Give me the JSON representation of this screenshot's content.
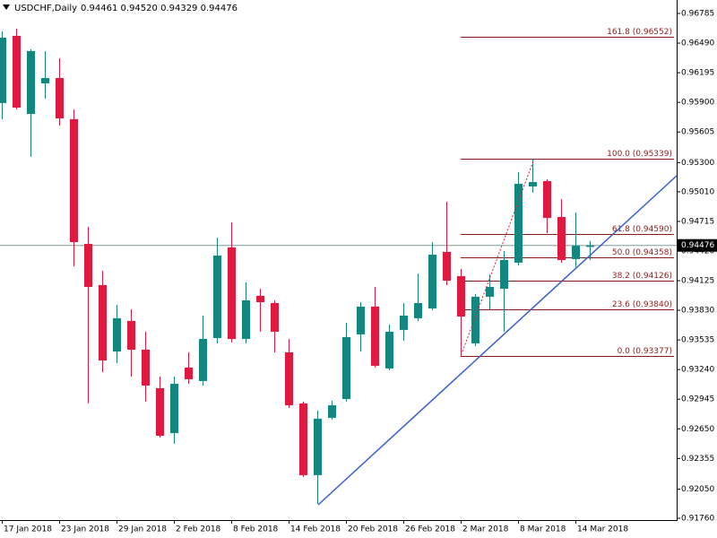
{
  "chart_data": {
    "type": "candlestick",
    "title": "USDCHF,Daily",
    "title_prices": "0.94461 0.94520 0.94329 0.94476",
    "categories": [
      "17 Jan 2018",
      null,
      null,
      null,
      "23 Jan 2018",
      null,
      null,
      null,
      "29 Jan 2018",
      null,
      null,
      null,
      "2 Feb 2018",
      null,
      null,
      null,
      "8 Feb 2018",
      null,
      null,
      null,
      "14 Feb 2018",
      null,
      null,
      null,
      "20 Feb 2018",
      null,
      null,
      null,
      "26 Feb 2018",
      null,
      null,
      null,
      "2 Mar 2018",
      null,
      null,
      null,
      "8 Mar 2018",
      null,
      null,
      null,
      "14 Mar 2018",
      null
    ],
    "open": [
      0.95893,
      0.96562,
      0.95785,
      0.96089,
      0.96142,
      0.95732,
      0.94491,
      0.94081,
      0.9342,
      0.93724,
      0.93438,
      0.93054,
      0.92608,
      0.9326,
      0.93126,
      0.93554,
      0.94456,
      0.93545,
      0.93974,
      0.93902,
      0.93411,
      0.92903,
      0.92189,
      0.9276,
      0.92947,
      0.9359,
      0.93867,
      0.93251,
      0.93635,
      0.93751,
      0.93849,
      0.94411,
      0.9417,
      0.93501,
      0.93965,
      0.94045,
      0.94304,
      0.95063,
      0.95116,
      0.94759,
      0.9434,
      0.94461
    ],
    "high": [
      0.96607,
      0.96633,
      0.96428,
      0.9641,
      0.96339,
      0.9583,
      0.94661,
      0.94224,
      0.93884,
      0.9384,
      0.93617,
      0.9317,
      0.9317,
      0.93411,
      0.93777,
      0.94554,
      0.94706,
      0.94108,
      0.94045,
      0.93929,
      0.93545,
      0.92921,
      0.92831,
      0.92929,
      0.93706,
      0.93911,
      0.94063,
      0.93688,
      0.93902,
      0.94197,
      0.94509,
      0.94911,
      0.94241,
      0.93992,
      0.94188,
      0.9442,
      0.95205,
      0.95339,
      0.95134,
      0.94938,
      0.94804,
      0.9452
    ],
    "low": [
      0.95732,
      0.9583,
      0.95357,
      0.95937,
      0.95669,
      0.94268,
      0.92903,
      0.93215,
      0.93304,
      0.9317,
      0.92921,
      0.92564,
      0.92501,
      0.93099,
      0.93081,
      0.93501,
      0.9351,
      0.93501,
      0.93617,
      0.93411,
      0.92858,
      0.92171,
      0.91903,
      0.92742,
      0.92921,
      0.9342,
      0.9326,
      0.93233,
      0.93527,
      0.93724,
      0.93831,
      0.94081,
      0.93377,
      0.93474,
      0.9384,
      0.93617,
      0.94277,
      0.95,
      0.94598,
      0.94304,
      0.94259,
      0.94329
    ],
    "close": [
      0.96544,
      0.95848,
      0.9641,
      0.96142,
      0.95741,
      0.94509,
      0.94063,
      0.93331,
      0.93751,
      0.93438,
      0.93081,
      0.92581,
      0.93099,
      0.93144,
      0.93545,
      0.94375,
      0.93545,
      0.93929,
      0.93911,
      0.93617,
      0.92885,
      0.92189,
      0.92751,
      0.92885,
      0.93563,
      0.93867,
      0.93278,
      0.93617,
      0.93777,
      0.93902,
      0.94384,
      0.94125,
      0.93768,
      0.93965,
      0.94063,
      0.94331,
      0.95089,
      0.95107,
      0.9475,
      0.94331,
      0.94473,
      0.94476
    ],
    "up_color": "#13877f",
    "down_color": "#e0193e",
    "ylim": [
      0.91742,
      0.96919
    ],
    "yticks": [
      0.96785,
      {
        "value": 0.9649,
        "label": "0.96490"
      },
      0.96195,
      {
        "value": 0.959,
        "label": "0.95900"
      },
      0.95605,
      {
        "value": 0.953,
        "label": "0.95300"
      },
      {
        "value": 0.9501,
        "label": "0.95010"
      },
      0.94715,
      {
        "value": 0.9442,
        "label": "0.94420"
      },
      0.94125,
      {
        "value": 0.9383,
        "label": "0.93830"
      },
      0.93535,
      {
        "value": 0.9324,
        "label": "0.93240"
      },
      0.92945,
      {
        "value": 0.9265,
        "label": "0.92650"
      },
      0.92355,
      {
        "value": 0.9205,
        "label": "0.92050"
      },
      {
        "value": 0.9176,
        "label": "0.91760"
      }
    ],
    "last_price": 0.94476,
    "fibo": {
      "color": "#8b1a1a",
      "levels": [
        {
          "label": "161.8 (0.96552)",
          "value": 0.96552
        },
        {
          "label": "100.0 (0.95339)",
          "value": 0.95339
        },
        {
          "label": "61.8 (0.94590)",
          "value": 0.9459
        },
        {
          "label": "50.0 (0.94358)",
          "value": 0.94358
        },
        {
          "label": "38.2 (0.94126)",
          "value": 0.94126
        },
        {
          "label": "23.6 (0.93840)",
          "value": 0.9384
        },
        {
          "label": "0.0 (0.93377)",
          "value": 0.93377
        }
      ]
    }
  }
}
